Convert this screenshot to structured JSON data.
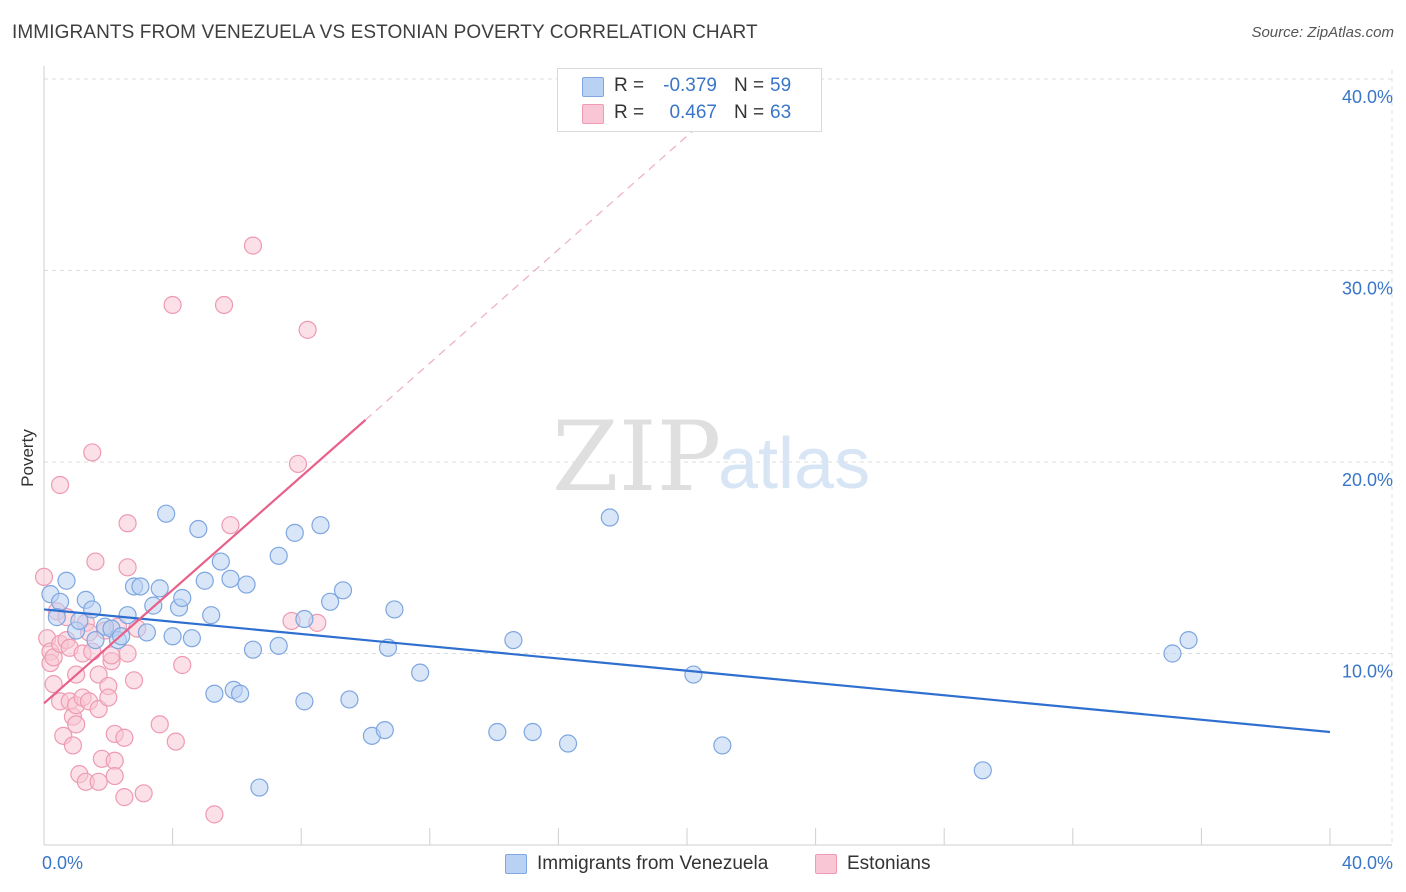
{
  "title": "IMMIGRANTS FROM VENEZUELA VS ESTONIAN POVERTY CORRELATION CHART",
  "source": "Source: ZipAtlas.com",
  "watermark": {
    "zip": "ZIP",
    "atlas": "atlas"
  },
  "legend": {
    "rows": [
      {
        "r_label": "R =",
        "r_value": "-0.379",
        "n_label": "N =",
        "n_value": "59",
        "color": "#b9d1f3"
      },
      {
        "r_label": "R =",
        "r_value": "0.467",
        "n_label": "N =",
        "n_value": "63",
        "color": "#f8c6d4"
      }
    ]
  },
  "bottom_legend": [
    "Immigrants from Venezuela",
    "Estonians"
  ],
  "chart_data": {
    "type": "scatter",
    "title": "IMMIGRANTS FROM VENEZUELA VS ESTONIAN POVERTY CORRELATION CHART",
    "xlabel": "",
    "ylabel": "Poverty",
    "xlim": [
      0,
      40
    ],
    "ylim": [
      0,
      40
    ],
    "x_tick_labels": [
      "0.0%",
      "40.0%"
    ],
    "y_tick_values": [
      10,
      20,
      30,
      40
    ],
    "y_tick_labels": [
      "10.0%",
      "20.0%",
      "30.0%",
      "40.0%"
    ],
    "grid": true,
    "series": [
      {
        "name": "Immigrants from Venezuela",
        "color": "#7ea6e0",
        "fill": "#b9d1f3",
        "trend_color": "#2f6fcf",
        "trend": {
          "x0": 0,
          "y0": 12.3,
          "x1": 40,
          "y1": 5.9
        },
        "points": [
          [
            0.2,
            13.1
          ],
          [
            0.5,
            12.7
          ],
          [
            0.7,
            13.8
          ],
          [
            0.4,
            11.9
          ],
          [
            1.0,
            11.2
          ],
          [
            1.1,
            11.7
          ],
          [
            1.3,
            12.8
          ],
          [
            1.5,
            12.3
          ],
          [
            1.6,
            10.7
          ],
          [
            1.9,
            11.4
          ],
          [
            2.1,
            11.3
          ],
          [
            2.3,
            10.7
          ],
          [
            2.4,
            10.9
          ],
          [
            2.6,
            12.0
          ],
          [
            2.8,
            13.5
          ],
          [
            3.0,
            13.5
          ],
          [
            3.2,
            11.1
          ],
          [
            3.4,
            12.5
          ],
          [
            3.6,
            13.4
          ],
          [
            3.8,
            17.3
          ],
          [
            4.0,
            10.9
          ],
          [
            4.2,
            12.4
          ],
          [
            4.3,
            12.9
          ],
          [
            4.6,
            10.8
          ],
          [
            4.8,
            16.5
          ],
          [
            5.0,
            13.8
          ],
          [
            5.2,
            12.0
          ],
          [
            5.3,
            7.9
          ],
          [
            5.5,
            14.8
          ],
          [
            5.8,
            13.9
          ],
          [
            5.9,
            8.1
          ],
          [
            6.1,
            7.9
          ],
          [
            6.3,
            13.6
          ],
          [
            6.5,
            10.2
          ],
          [
            6.7,
            3.0
          ],
          [
            7.3,
            10.4
          ],
          [
            7.3,
            15.1
          ],
          [
            7.8,
            16.3
          ],
          [
            8.1,
            11.8
          ],
          [
            8.1,
            7.5
          ],
          [
            8.6,
            16.7
          ],
          [
            8.9,
            12.7
          ],
          [
            9.3,
            13.3
          ],
          [
            9.5,
            7.6
          ],
          [
            10.2,
            5.7
          ],
          [
            10.6,
            6.0
          ],
          [
            10.7,
            10.3
          ],
          [
            10.9,
            12.3
          ],
          [
            11.7,
            9.0
          ],
          [
            14.1,
            5.9
          ],
          [
            14.6,
            10.7
          ],
          [
            15.2,
            5.9
          ],
          [
            16.3,
            5.3
          ],
          [
            17.6,
            17.1
          ],
          [
            20.2,
            8.9
          ],
          [
            21.1,
            5.2
          ],
          [
            29.2,
            3.9
          ],
          [
            35.1,
            10.0
          ],
          [
            35.6,
            10.7
          ]
        ]
      },
      {
        "name": "Estonians",
        "color": "#ee9ab3",
        "fill": "#f8c6d4",
        "trend_color": "#e8618a",
        "trend": {
          "x0": 0,
          "y0": 7.4,
          "x1": 10,
          "y1": 22.2,
          "x_dash_end": 21.2,
          "y_dash_end": 38.8
        },
        "points": [
          [
            0.0,
            14.0
          ],
          [
            0.1,
            10.8
          ],
          [
            0.2,
            10.1
          ],
          [
            0.2,
            9.5
          ],
          [
            0.3,
            8.4
          ],
          [
            0.3,
            9.8
          ],
          [
            0.4,
            12.2
          ],
          [
            0.5,
            10.5
          ],
          [
            0.5,
            7.5
          ],
          [
            0.5,
            18.8
          ],
          [
            0.6,
            5.7
          ],
          [
            0.7,
            10.7
          ],
          [
            0.7,
            11.9
          ],
          [
            0.8,
            10.3
          ],
          [
            0.8,
            7.5
          ],
          [
            0.9,
            6.7
          ],
          [
            0.9,
            5.2
          ],
          [
            1.0,
            7.3
          ],
          [
            1.0,
            8.9
          ],
          [
            1.0,
            6.3
          ],
          [
            1.1,
            3.7
          ],
          [
            1.2,
            7.7
          ],
          [
            1.2,
            10.0
          ],
          [
            1.3,
            11.6
          ],
          [
            1.3,
            3.3
          ],
          [
            1.4,
            7.5
          ],
          [
            1.4,
            11.1
          ],
          [
            1.5,
            10.1
          ],
          [
            1.5,
            20.5
          ],
          [
            1.6,
            14.8
          ],
          [
            1.7,
            8.9
          ],
          [
            1.7,
            3.3
          ],
          [
            1.7,
            7.1
          ],
          [
            1.8,
            4.5
          ],
          [
            1.9,
            11.2
          ],
          [
            2.0,
            8.3
          ],
          [
            2.0,
            7.7
          ],
          [
            2.1,
            9.6
          ],
          [
            2.1,
            9.9
          ],
          [
            2.2,
            5.8
          ],
          [
            2.2,
            4.4
          ],
          [
            2.2,
            3.6
          ],
          [
            2.3,
            11.4
          ],
          [
            2.5,
            2.5
          ],
          [
            2.5,
            5.6
          ],
          [
            2.6,
            10.0
          ],
          [
            2.6,
            16.8
          ],
          [
            2.6,
            14.5
          ],
          [
            2.8,
            8.6
          ],
          [
            2.9,
            11.3
          ],
          [
            3.1,
            2.7
          ],
          [
            3.6,
            6.3
          ],
          [
            4.0,
            28.2
          ],
          [
            4.1,
            5.4
          ],
          [
            4.3,
            9.4
          ],
          [
            5.3,
            1.6
          ],
          [
            5.6,
            28.2
          ],
          [
            5.8,
            16.7
          ],
          [
            6.5,
            31.3
          ],
          [
            7.7,
            11.7
          ],
          [
            7.9,
            19.9
          ],
          [
            8.2,
            26.9
          ],
          [
            8.5,
            11.6
          ]
        ]
      }
    ]
  }
}
